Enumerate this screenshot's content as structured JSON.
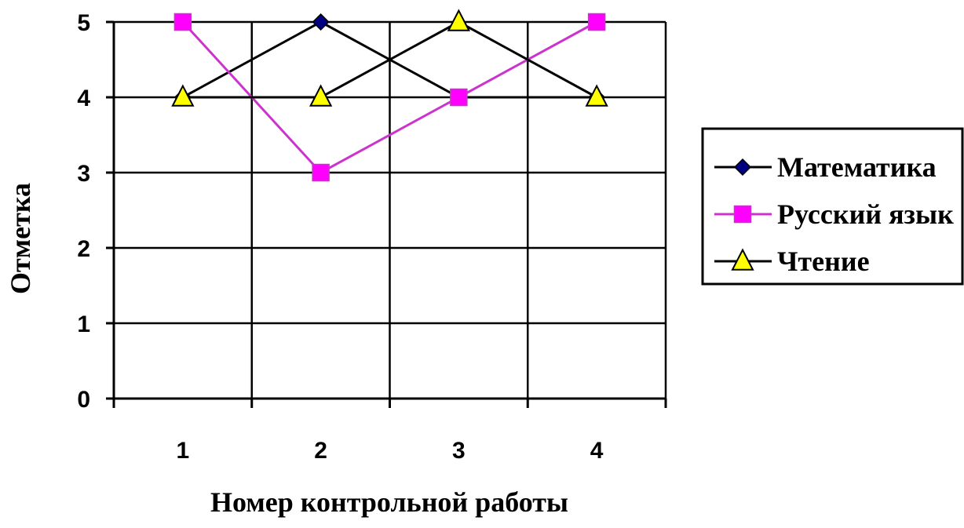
{
  "chart_data": {
    "type": "line",
    "categories": [
      "1",
      "2",
      "3",
      "4"
    ],
    "series": [
      {
        "name": "Математика",
        "values": [
          4,
          5,
          4,
          4
        ],
        "color": "#000000",
        "marker": "diamond",
        "marker_color": "#000080"
      },
      {
        "name": "Русский язык",
        "values": [
          5,
          3,
          4,
          5
        ],
        "color": "#cc33cc",
        "marker": "square",
        "marker_color": "#ff00ff"
      },
      {
        "name": "Чтение",
        "values": [
          4,
          4,
          5,
          4
        ],
        "color": "#000000",
        "marker": "triangle",
        "marker_color": "#ffff00"
      }
    ],
    "title": "",
    "xlabel": "Номер контрольной работы",
    "ylabel": "Отметка",
    "ylim": [
      0,
      5
    ],
    "yticks": [
      "0",
      "1",
      "2",
      "3",
      "4",
      "5"
    ],
    "grid": true,
    "legend_position": "right"
  }
}
